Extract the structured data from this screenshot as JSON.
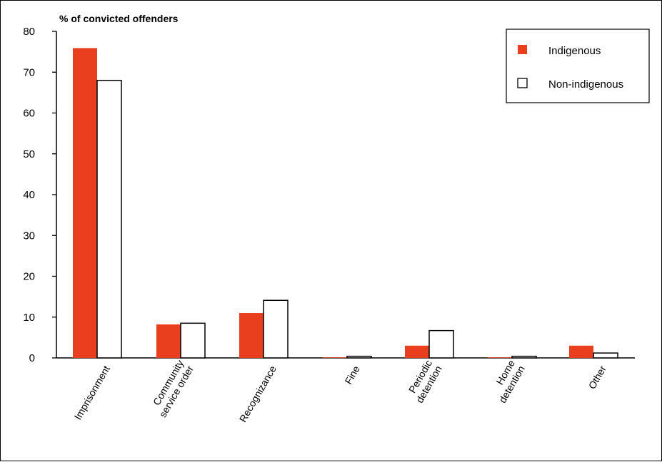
{
  "chart_data": {
    "type": "bar",
    "ylabel": "% of convicted offenders",
    "ylim": [
      0,
      80
    ],
    "yticks": [
      0,
      10,
      20,
      30,
      40,
      50,
      60,
      70,
      80
    ],
    "categories": [
      [
        "Imprisonment"
      ],
      [
        "Community",
        "service order"
      ],
      [
        "Recognizance"
      ],
      [
        "Fine"
      ],
      [
        "Periodic",
        "detention"
      ],
      [
        "Home",
        "detention"
      ],
      [
        "Other"
      ]
    ],
    "series": [
      {
        "name": "Indigenous",
        "values": [
          75.9,
          8.2,
          11.0,
          0.0,
          3.0,
          0.0,
          3.0
        ]
      },
      {
        "name": "Non-indigenous",
        "values": [
          68.0,
          8.5,
          14.1,
          0.4,
          6.7,
          0.4,
          1.2
        ]
      }
    ],
    "colors": {
      "Indigenous": "#ea3f1e",
      "Non-indigenous": "#ffffff",
      "stroke": "#000000"
    },
    "legend_position": "top-right",
    "grid": false
  }
}
